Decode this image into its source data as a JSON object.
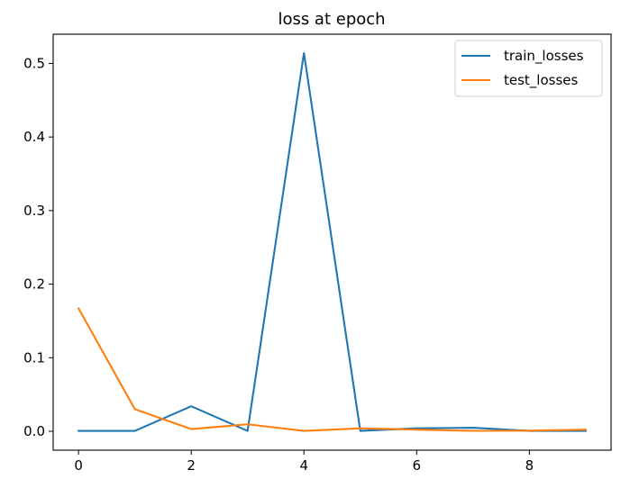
{
  "chart_data": {
    "type": "line",
    "title": "loss at epoch",
    "xlabel": "",
    "ylabel": "",
    "x": [
      0,
      1,
      2,
      3,
      4,
      5,
      6,
      7,
      8,
      9
    ],
    "xlim": [
      -0.45,
      9.45
    ],
    "ylim": [
      -0.0257,
      0.5397
    ],
    "xticks": [
      0,
      2,
      4,
      6,
      8
    ],
    "yticks": [
      0.0,
      0.1,
      0.2,
      0.3,
      0.4,
      0.5
    ],
    "ytick_labels": [
      "0.0",
      "0.1",
      "0.2",
      "0.3",
      "0.4",
      "0.5"
    ],
    "grid": false,
    "legend_position": "top-right",
    "series": [
      {
        "name": "train_losses",
        "color": "#1f77b4",
        "values": [
          0.0005,
          0.0005,
          0.034,
          0.0005,
          0.514,
          0.0005,
          0.004,
          0.0048,
          0.0005,
          0.0005
        ]
      },
      {
        "name": "test_losses",
        "color": "#ff7f0e",
        "values": [
          0.167,
          0.03,
          0.003,
          0.0095,
          0.0005,
          0.004,
          0.0022,
          0.0006,
          0.0008,
          0.0022
        ]
      }
    ]
  }
}
